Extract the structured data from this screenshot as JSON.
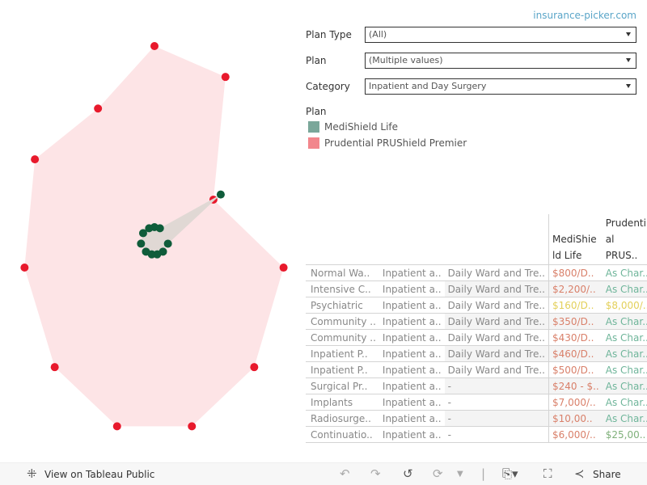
{
  "site_link": "insurance-picker.com",
  "filters": [
    {
      "label": "Plan Type",
      "value": "(All)"
    },
    {
      "label": "Plan",
      "value": "(Multiple values)"
    },
    {
      "label": "Category",
      "value": "Inpatient and Day Surgery"
    }
  ],
  "legend": {
    "title": "Plan",
    "items": [
      {
        "label": "MediShield Life",
        "color": "#7aa79a"
      },
      {
        "label": "Prudential PRUShield Premier",
        "color": "#f2868c"
      }
    ]
  },
  "table": {
    "headers": [
      "",
      "",
      "",
      "MediShie ld Life",
      "Prudenti al PRUS.."
    ],
    "rows": [
      [
        "Normal Wa..",
        "Inpatient a..",
        "Daily Ward and Tre..",
        "$800/D..",
        "As Char.."
      ],
      [
        "Intensive C..",
        "Inpatient a..",
        "Daily Ward and Tre..",
        "$2,200/..",
        "As Char.."
      ],
      [
        "Psychiatric",
        "Inpatient a..",
        "Daily Ward and Tre..",
        "$160/D..",
        "$8,000/.."
      ],
      [
        "Community ..",
        "Inpatient a..",
        "Daily Ward and Tre..",
        "$350/D..",
        "As Char.."
      ],
      [
        "Community ..",
        "Inpatient a..",
        "Daily Ward and Tre..",
        "$430/D..",
        "As Char.."
      ],
      [
        "Inpatient P..",
        "Inpatient a..",
        "Daily Ward and Tre..",
        "$460/D..",
        "As Char.."
      ],
      [
        "Inpatient P..",
        "Inpatient a..",
        "Daily Ward and Tre..",
        "$500/D..",
        "As Char.."
      ],
      [
        "Surgical Pr..",
        "Inpatient a..",
        "-",
        "$240 - $..",
        "As Char.."
      ],
      [
        "Implants",
        "Inpatient a..",
        "-",
        "$7,000/..",
        "As Char.."
      ],
      [
        "Radiosurge..",
        "Inpatient a..",
        "-",
        "$10,00..",
        "As Char.."
      ],
      [
        "Continuatio..",
        "Inpatient a..",
        "-",
        "$6,000/..",
        "$25,00.."
      ]
    ],
    "colors": [
      [
        "#d9806a",
        "#6fb59a"
      ],
      [
        "#d9806a",
        "#6fb59a"
      ],
      [
        "#e3d05a",
        "#e3d05a"
      ],
      [
        "#d9806a",
        "#6fb59a"
      ],
      [
        "#d9806a",
        "#6fb59a"
      ],
      [
        "#d9806a",
        "#6fb59a"
      ],
      [
        "#d9806a",
        "#6fb59a"
      ],
      [
        "#d9806a",
        "#6fb59a"
      ],
      [
        "#d9806a",
        "#6fb59a"
      ],
      [
        "#d9806a",
        "#6fb59a"
      ],
      [
        "#d9806a",
        "#7fb07a"
      ]
    ]
  },
  "chart_data": {
    "type": "radar",
    "angles_deg": [
      0,
      23.4,
      55,
      101.7,
      141.7,
      168.6,
      191.4,
      218.3,
      258.4,
      304.3,
      336.9
    ],
    "series": [
      {
        "name": "Prudential PRUShield Premier",
        "color": "#e8192c",
        "fill": "#fde4e6",
        "values": [
          241,
          221,
          89,
          163,
          199,
          234,
          234,
          199,
          164,
          179,
          178
        ]
      },
      {
        "name": "MediShield Life",
        "color": "#0f5c3a",
        "fill": "#e0d8d4",
        "values": [
          17,
          17,
          100,
          17,
          17,
          17,
          17,
          17,
          17,
          17,
          17
        ]
      }
    ]
  },
  "footer": {
    "view": "View on Tableau Public",
    "share": "Share"
  }
}
